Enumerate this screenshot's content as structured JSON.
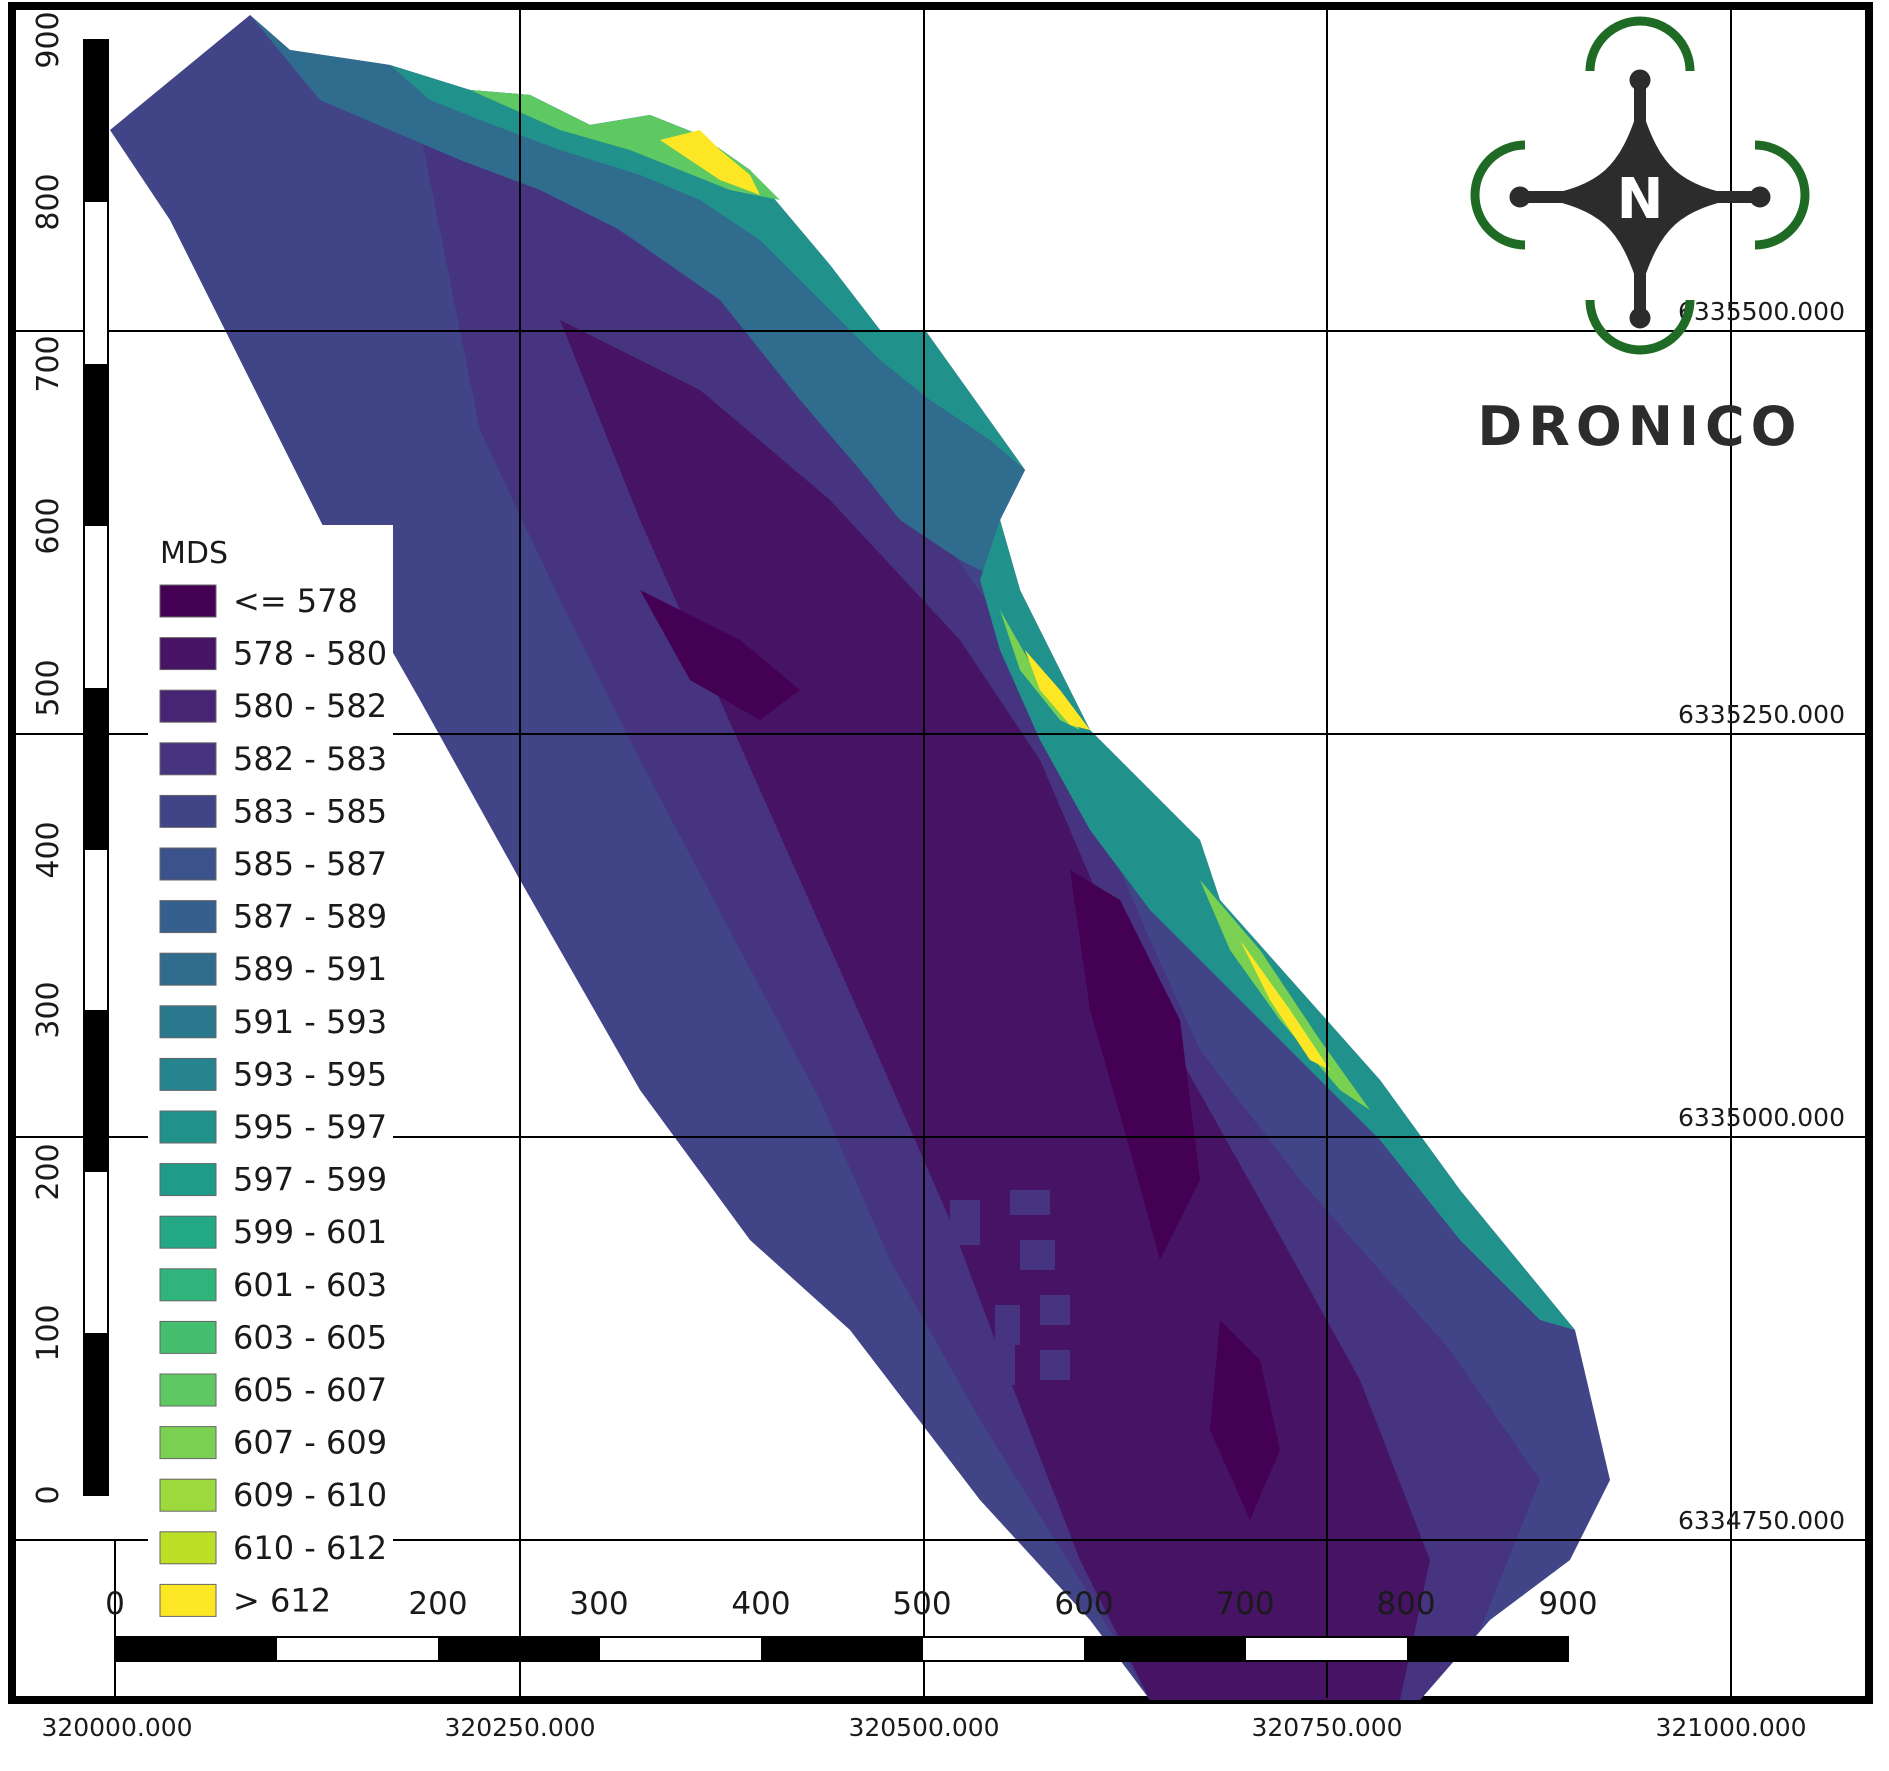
{
  "legend": {
    "title": "MDS",
    "classes": [
      {
        "label": "<= 578",
        "color": "#440154"
      },
      {
        "label": "578 - 580",
        "color": "#471365"
      },
      {
        "label": "580 - 582",
        "color": "#482475"
      },
      {
        "label": "582 - 583",
        "color": "#463480"
      },
      {
        "label": "583 - 585",
        "color": "#414487"
      },
      {
        "label": "585 - 587",
        "color": "#3b528b"
      },
      {
        "label": "587 - 589",
        "color": "#355f8d"
      },
      {
        "label": "589 - 591",
        "color": "#2f6c8e"
      },
      {
        "label": "591 - 593",
        "color": "#2a788e"
      },
      {
        "label": "593 - 595",
        "color": "#25848e"
      },
      {
        "label": "595 - 597",
        "color": "#21918c"
      },
      {
        "label": "597 - 599",
        "color": "#1e9c89"
      },
      {
        "label": "599 - 601",
        "color": "#22a884"
      },
      {
        "label": "601 - 603",
        "color": "#2fb47c"
      },
      {
        "label": "603 - 605",
        "color": "#44bf70"
      },
      {
        "label": "605 - 607",
        "color": "#5ec962"
      },
      {
        "label": "607 - 609",
        "color": "#7ad151"
      },
      {
        "label": "609 - 610",
        "color": "#9bd93c"
      },
      {
        "label": "610 - 612",
        "color": "#bddf26"
      },
      {
        "label": "> 612",
        "color": "#fde725"
      }
    ]
  },
  "vertical_scale_labels": [
    "900",
    "800",
    "700",
    "600",
    "500",
    "400",
    "300",
    "200",
    "100",
    "0"
  ],
  "horizontal_scale_labels": [
    "0",
    "200",
    "300",
    "400",
    "500",
    "600",
    "700",
    "800",
    "900"
  ],
  "northing_labels": [
    "6335500.000",
    "6335250.000",
    "6335000.000",
    "6334750.000"
  ],
  "easting_labels": [
    "320000.000",
    "320250.000",
    "320500.000",
    "320750.000",
    "321000.000"
  ],
  "logo": {
    "name": "DRONICO",
    "north_letter": "N",
    "ring_color": "#1f6b25",
    "body_color": "#2c2c2c"
  }
}
